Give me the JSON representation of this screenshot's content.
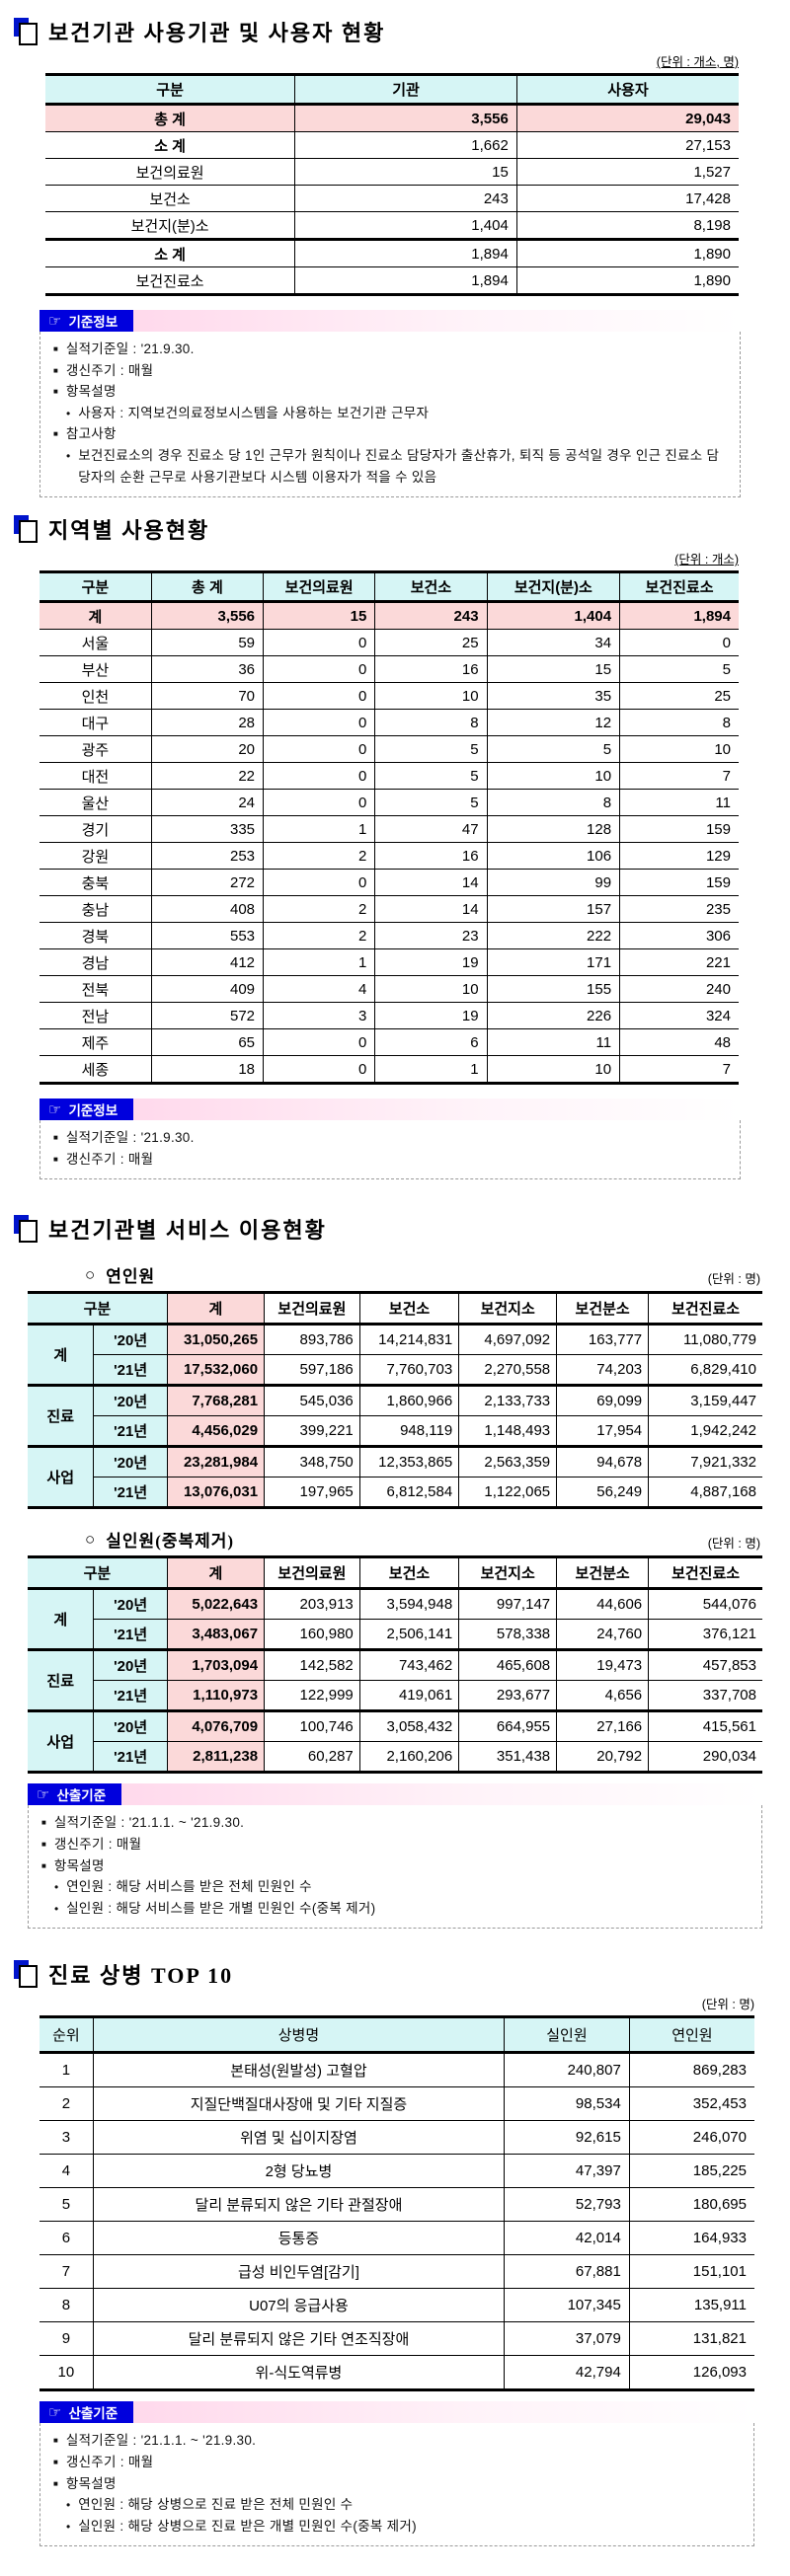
{
  "colors": {
    "accent_blue": "#0000dd",
    "icon_blue": "#0014cc",
    "header_cyan": "#d6f5f5",
    "total_pink": "#fbd9d9",
    "gradient_pink": "#ffd9ec"
  },
  "section_usage": {
    "title": "보건기관 사용기관 및 사용자 현황",
    "unit": "(단위 : 개소, 명)",
    "table": {
      "headers": [
        "구분",
        "기관",
        "사용자"
      ],
      "rows": [
        {
          "cls": "grand",
          "c": [
            "총 계",
            "3,556",
            "29,043"
          ]
        },
        {
          "cls": "sub",
          "c": [
            "소 계",
            "1,662",
            "27,153"
          ]
        },
        {
          "c": [
            "보건의료원",
            "15",
            "1,527"
          ]
        },
        {
          "c": [
            "보건소",
            "243",
            "17,428"
          ]
        },
        {
          "c": [
            "보건지(분)소",
            "1,404",
            "8,198"
          ]
        },
        {
          "cls": "sub sep",
          "c": [
            "소 계",
            "1,894",
            "1,890"
          ]
        },
        {
          "c": [
            "보건진료소",
            "1,894",
            "1,890"
          ]
        }
      ]
    }
  },
  "info_usage": {
    "icon": "☞",
    "label": "기준정보",
    "lines": [
      {
        "lvl": 1,
        "b": "■",
        "t": "실적기준일 : '21.9.30."
      },
      {
        "lvl": 1,
        "b": "■",
        "t": "갱신주기 : 매월"
      },
      {
        "lvl": 1,
        "b": "■",
        "t": "항목설명"
      },
      {
        "lvl": 2,
        "b": "•",
        "t": "사용자 : 지역보건의료정보시스템을 사용하는 보건기관 근무자"
      },
      {
        "lvl": 1,
        "b": "■",
        "t": "참고사항"
      },
      {
        "lvl": 2,
        "b": "•",
        "t": "보건진료소의 경우 진료소 당 1인 근무가 원칙이나 진료소 담당자가 출산휴가, 퇴직 등 공석일 경우 인근 진료소 담당자의 순환 근무로 사용기관보다 시스템 이용자가 적을 수 있음"
      }
    ]
  },
  "section_region": {
    "title": "지역별 사용현황",
    "unit": "(단위 : 개소)",
    "table": {
      "headers": [
        "구분",
        "총 계",
        "보건의료원",
        "보건소",
        "보건지(분)소",
        "보건진료소"
      ],
      "rows": [
        {
          "cls": "grand",
          "c": [
            "계",
            "3,556",
            "15",
            "243",
            "1,404",
            "1,894"
          ]
        },
        {
          "c": [
            "서울",
            "59",
            "0",
            "25",
            "34",
            "0"
          ]
        },
        {
          "c": [
            "부산",
            "36",
            "0",
            "16",
            "15",
            "5"
          ]
        },
        {
          "c": [
            "인천",
            "70",
            "0",
            "10",
            "35",
            "25"
          ]
        },
        {
          "c": [
            "대구",
            "28",
            "0",
            "8",
            "12",
            "8"
          ]
        },
        {
          "c": [
            "광주",
            "20",
            "0",
            "5",
            "5",
            "10"
          ]
        },
        {
          "c": [
            "대전",
            "22",
            "0",
            "5",
            "10",
            "7"
          ]
        },
        {
          "c": [
            "울산",
            "24",
            "0",
            "5",
            "8",
            "11"
          ]
        },
        {
          "c": [
            "경기",
            "335",
            "1",
            "47",
            "128",
            "159"
          ]
        },
        {
          "c": [
            "강원",
            "253",
            "2",
            "16",
            "106",
            "129"
          ]
        },
        {
          "c": [
            "충북",
            "272",
            "0",
            "14",
            "99",
            "159"
          ]
        },
        {
          "c": [
            "충남",
            "408",
            "2",
            "14",
            "157",
            "235"
          ]
        },
        {
          "c": [
            "경북",
            "553",
            "2",
            "23",
            "222",
            "306"
          ]
        },
        {
          "c": [
            "경남",
            "412",
            "1",
            "19",
            "171",
            "221"
          ]
        },
        {
          "c": [
            "전북",
            "409",
            "4",
            "10",
            "155",
            "240"
          ]
        },
        {
          "c": [
            "전남",
            "572",
            "3",
            "19",
            "226",
            "324"
          ]
        },
        {
          "c": [
            "제주",
            "65",
            "0",
            "6",
            "11",
            "48"
          ]
        },
        {
          "c": [
            "세종",
            "18",
            "0",
            "1",
            "10",
            "7"
          ]
        }
      ]
    }
  },
  "info_region": {
    "icon": "☞",
    "label": "기준정보",
    "lines": [
      {
        "lvl": 1,
        "b": "■",
        "t": "실적기준일 : '21.9.30."
      },
      {
        "lvl": 1,
        "b": "■",
        "t": "갱신주기 : 매월"
      }
    ]
  },
  "section_service": {
    "title": "보건기관별 서비스 이용현황",
    "headers": [
      "구분",
      "계",
      "보건의료원",
      "보건소",
      "보건지소",
      "보건분소",
      "보건진료소"
    ],
    "yeon": {
      "marker": "○",
      "label": "연인원",
      "unit": "(단위 : 명)"
    },
    "sil": {
      "marker": "○",
      "label": "실인원(중복제거)",
      "unit": "(단위 : 명)"
    },
    "yeon_rows": [
      {
        "c": [
          {
            "t": "계",
            "cls": "c-group",
            "rs": 2
          },
          {
            "t": "'20년",
            "cls": "c-year"
          },
          {
            "t": "31,050,265",
            "cls": "c-total"
          },
          "893,786",
          "14,214,831",
          "4,697,092",
          "163,777",
          "11,080,779"
        ]
      },
      {
        "cls": "inner",
        "c": [
          {
            "t": "'21년",
            "cls": "c-year"
          },
          {
            "t": "17,532,060",
            "cls": "c-total"
          },
          "597,186",
          "7,760,703",
          "2,270,558",
          "74,203",
          "6,829,410"
        ]
      },
      {
        "cls": "sep",
        "c": [
          {
            "t": "진료",
            "cls": "c-group",
            "rs": 2
          },
          {
            "t": "'20년",
            "cls": "c-year"
          },
          {
            "t": "7,768,281",
            "cls": "c-total"
          },
          "545,036",
          "1,860,966",
          "2,133,733",
          "69,099",
          "3,159,447"
        ]
      },
      {
        "cls": "inner",
        "c": [
          {
            "t": "'21년",
            "cls": "c-year"
          },
          {
            "t": "4,456,029",
            "cls": "c-total"
          },
          "399,221",
          "948,119",
          "1,148,493",
          "17,954",
          "1,942,242"
        ]
      },
      {
        "cls": "sep",
        "c": [
          {
            "t": "사업",
            "cls": "c-group",
            "rs": 2
          },
          {
            "t": "'20년",
            "cls": "c-year"
          },
          {
            "t": "23,281,984",
            "cls": "c-total"
          },
          "348,750",
          "12,353,865",
          "2,563,359",
          "94,678",
          "7,921,332"
        ]
      },
      {
        "cls": "inner",
        "c": [
          {
            "t": "'21년",
            "cls": "c-year"
          },
          {
            "t": "13,076,031",
            "cls": "c-total"
          },
          "197,965",
          "6,812,584",
          "1,122,065",
          "56,249",
          "4,887,168"
        ]
      }
    ],
    "sil_rows": [
      {
        "c": [
          {
            "t": "계",
            "cls": "c-group",
            "rs": 2
          },
          {
            "t": "'20년",
            "cls": "c-year"
          },
          {
            "t": "5,022,643",
            "cls": "c-total"
          },
          "203,913",
          "3,594,948",
          "997,147",
          "44,606",
          "544,076"
        ]
      },
      {
        "cls": "inner",
        "c": [
          {
            "t": "'21년",
            "cls": "c-year"
          },
          {
            "t": "3,483,067",
            "cls": "c-total"
          },
          "160,980",
          "2,506,141",
          "578,338",
          "24,760",
          "376,121"
        ]
      },
      {
        "cls": "sep",
        "c": [
          {
            "t": "진료",
            "cls": "c-group",
            "rs": 2
          },
          {
            "t": "'20년",
            "cls": "c-year"
          },
          {
            "t": "1,703,094",
            "cls": "c-total"
          },
          "142,582",
          "743,462",
          "465,608",
          "19,473",
          "457,853"
        ]
      },
      {
        "cls": "inner",
        "c": [
          {
            "t": "'21년",
            "cls": "c-year"
          },
          {
            "t": "1,110,973",
            "cls": "c-total"
          },
          "122,999",
          "419,061",
          "293,677",
          "4,656",
          "337,708"
        ]
      },
      {
        "cls": "sep",
        "c": [
          {
            "t": "사업",
            "cls": "c-group",
            "rs": 2
          },
          {
            "t": "'20년",
            "cls": "c-year"
          },
          {
            "t": "4,076,709",
            "cls": "c-total"
          },
          "100,746",
          "3,058,432",
          "664,955",
          "27,166",
          "415,561"
        ]
      },
      {
        "cls": "inner",
        "c": [
          {
            "t": "'21년",
            "cls": "c-year"
          },
          {
            "t": "2,811,238",
            "cls": "c-total"
          },
          "60,287",
          "2,160,206",
          "351,438",
          "20,792",
          "290,034"
        ]
      }
    ]
  },
  "info_service": {
    "icon": "☞",
    "label": "산출기준",
    "lines": [
      {
        "lvl": 1,
        "b": "■",
        "t": "실적기준일 : '21.1.1. ~ '21.9.30."
      },
      {
        "lvl": 1,
        "b": "■",
        "t": "갱신주기 : 매월"
      },
      {
        "lvl": 1,
        "b": "■",
        "t": "항목설명"
      },
      {
        "lvl": 2,
        "b": "•",
        "t": "연인원 : 해당 서비스를 받은 전체 민원인 수"
      },
      {
        "lvl": 2,
        "b": "•",
        "t": "실인원 : 해당 서비스를 받은 개별 민원인 수(중복 제거)"
      }
    ]
  },
  "section_top10": {
    "title": "진료 상병 TOP 10",
    "unit": "(단위 : 명)",
    "table": {
      "headers": [
        "순위",
        "상병명",
        "실인원",
        "연인원"
      ],
      "rows": [
        {
          "c": [
            "1",
            "본태성(원발성) 고혈압",
            "240,807",
            "869,283"
          ]
        },
        {
          "c": [
            "2",
            "지질단백질대사장애 및 기타 지질증",
            "98,534",
            "352,453"
          ]
        },
        {
          "c": [
            "3",
            "위염 및 십이지장염",
            "92,615",
            "246,070"
          ]
        },
        {
          "c": [
            "4",
            "2형 당뇨병",
            "47,397",
            "185,225"
          ]
        },
        {
          "c": [
            "5",
            "달리 분류되지 않은 기타 관절장애",
            "52,793",
            "180,695"
          ]
        },
        {
          "c": [
            "6",
            "등통증",
            "42,014",
            "164,933"
          ]
        },
        {
          "c": [
            "7",
            "급성 비인두염[감기]",
            "67,881",
            "151,101"
          ]
        },
        {
          "c": [
            "8",
            "U07의 응급사용",
            "107,345",
            "135,911"
          ]
        },
        {
          "c": [
            "9",
            "달리 분류되지 않은 기타 연조직장애",
            "37,079",
            "131,821"
          ]
        },
        {
          "c": [
            "10",
            "위-식도역류병",
            "42,794",
            "126,093"
          ]
        }
      ]
    }
  },
  "info_top10": {
    "icon": "☞",
    "label": "산출기준",
    "lines": [
      {
        "lvl": 1,
        "b": "■",
        "t": "실적기준일 : '21.1.1. ~ '21.9.30."
      },
      {
        "lvl": 1,
        "b": "■",
        "t": "갱신주기 : 매월"
      },
      {
        "lvl": 1,
        "b": "■",
        "t": "항목설명"
      },
      {
        "lvl": 2,
        "b": "•",
        "t": "연인원 : 해당 상병으로 진료 받은 전체 민원인 수"
      },
      {
        "lvl": 2,
        "b": "•",
        "t": "실인원 : 해당 상병으로 진료 받은 개별 민원인 수(중복 제거)"
      }
    ]
  }
}
